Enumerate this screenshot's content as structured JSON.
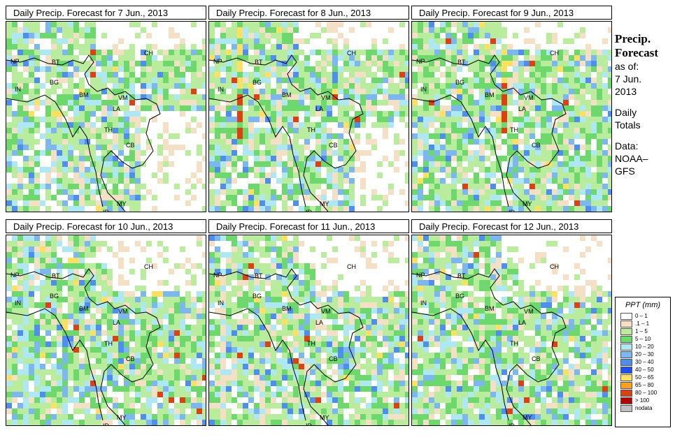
{
  "panels": [
    {
      "title": "Daily Precip. Forecast for  7 Jun., 2013"
    },
    {
      "title": "Daily Precip. Forecast for  8 Jun., 2013"
    },
    {
      "title": "Daily Precip. Forecast for  9 Jun., 2013"
    },
    {
      "title": "Daily Precip. Forecast for  10 Jun., 2013"
    },
    {
      "title": "Daily Precip. Forecast for  11 Jun., 2013"
    },
    {
      "title": "Daily Precip. Forecast for  12 Jun., 2013"
    }
  ],
  "country_labels": {
    "np": "NP",
    "bt": "BT",
    "ch": "CH",
    "in": "IN",
    "bg": "BG",
    "bm": "BM",
    "vm": "VM",
    "la": "LA",
    "th": "TH",
    "cb": "CB",
    "my": "MY",
    "id": "ID"
  },
  "sidebar": {
    "heading1": "Precip.",
    "heading2": "Forecast",
    "asof": "as of:",
    "date1": "7 Jun.",
    "date2": "2013",
    "totals1": "Daily",
    "totals2": "Totals",
    "data1": "Data:",
    "data2": "NOAA–",
    "data3": "GFS"
  },
  "legend": {
    "title": "PPT (mm)",
    "items": [
      {
        "label": "0 – 1",
        "color": "#ffffff"
      },
      {
        "label": ".1 – 1",
        "color": "#f5dfc5"
      },
      {
        "label": "1 – 5",
        "color": "#b9ec9c"
      },
      {
        "label": "5 – 10",
        "color": "#6dd96d"
      },
      {
        "label": "10 – 20",
        "color": "#aee8f5"
      },
      {
        "label": "20 – 30",
        "color": "#7db7f2"
      },
      {
        "label": "30 – 40",
        "color": "#4d8ef0"
      },
      {
        "label": "40 – 50",
        "color": "#1f4ff0"
      },
      {
        "label": "50 – 65",
        "color": "#ffe060"
      },
      {
        "label": "65 – 80",
        "color": "#ffa020"
      },
      {
        "label": "80 – 100",
        "color": "#e04010"
      },
      {
        "label": "> 100",
        "color": "#b00000"
      },
      {
        "label": "nodata",
        "color": "#c0c0c0"
      }
    ]
  }
}
